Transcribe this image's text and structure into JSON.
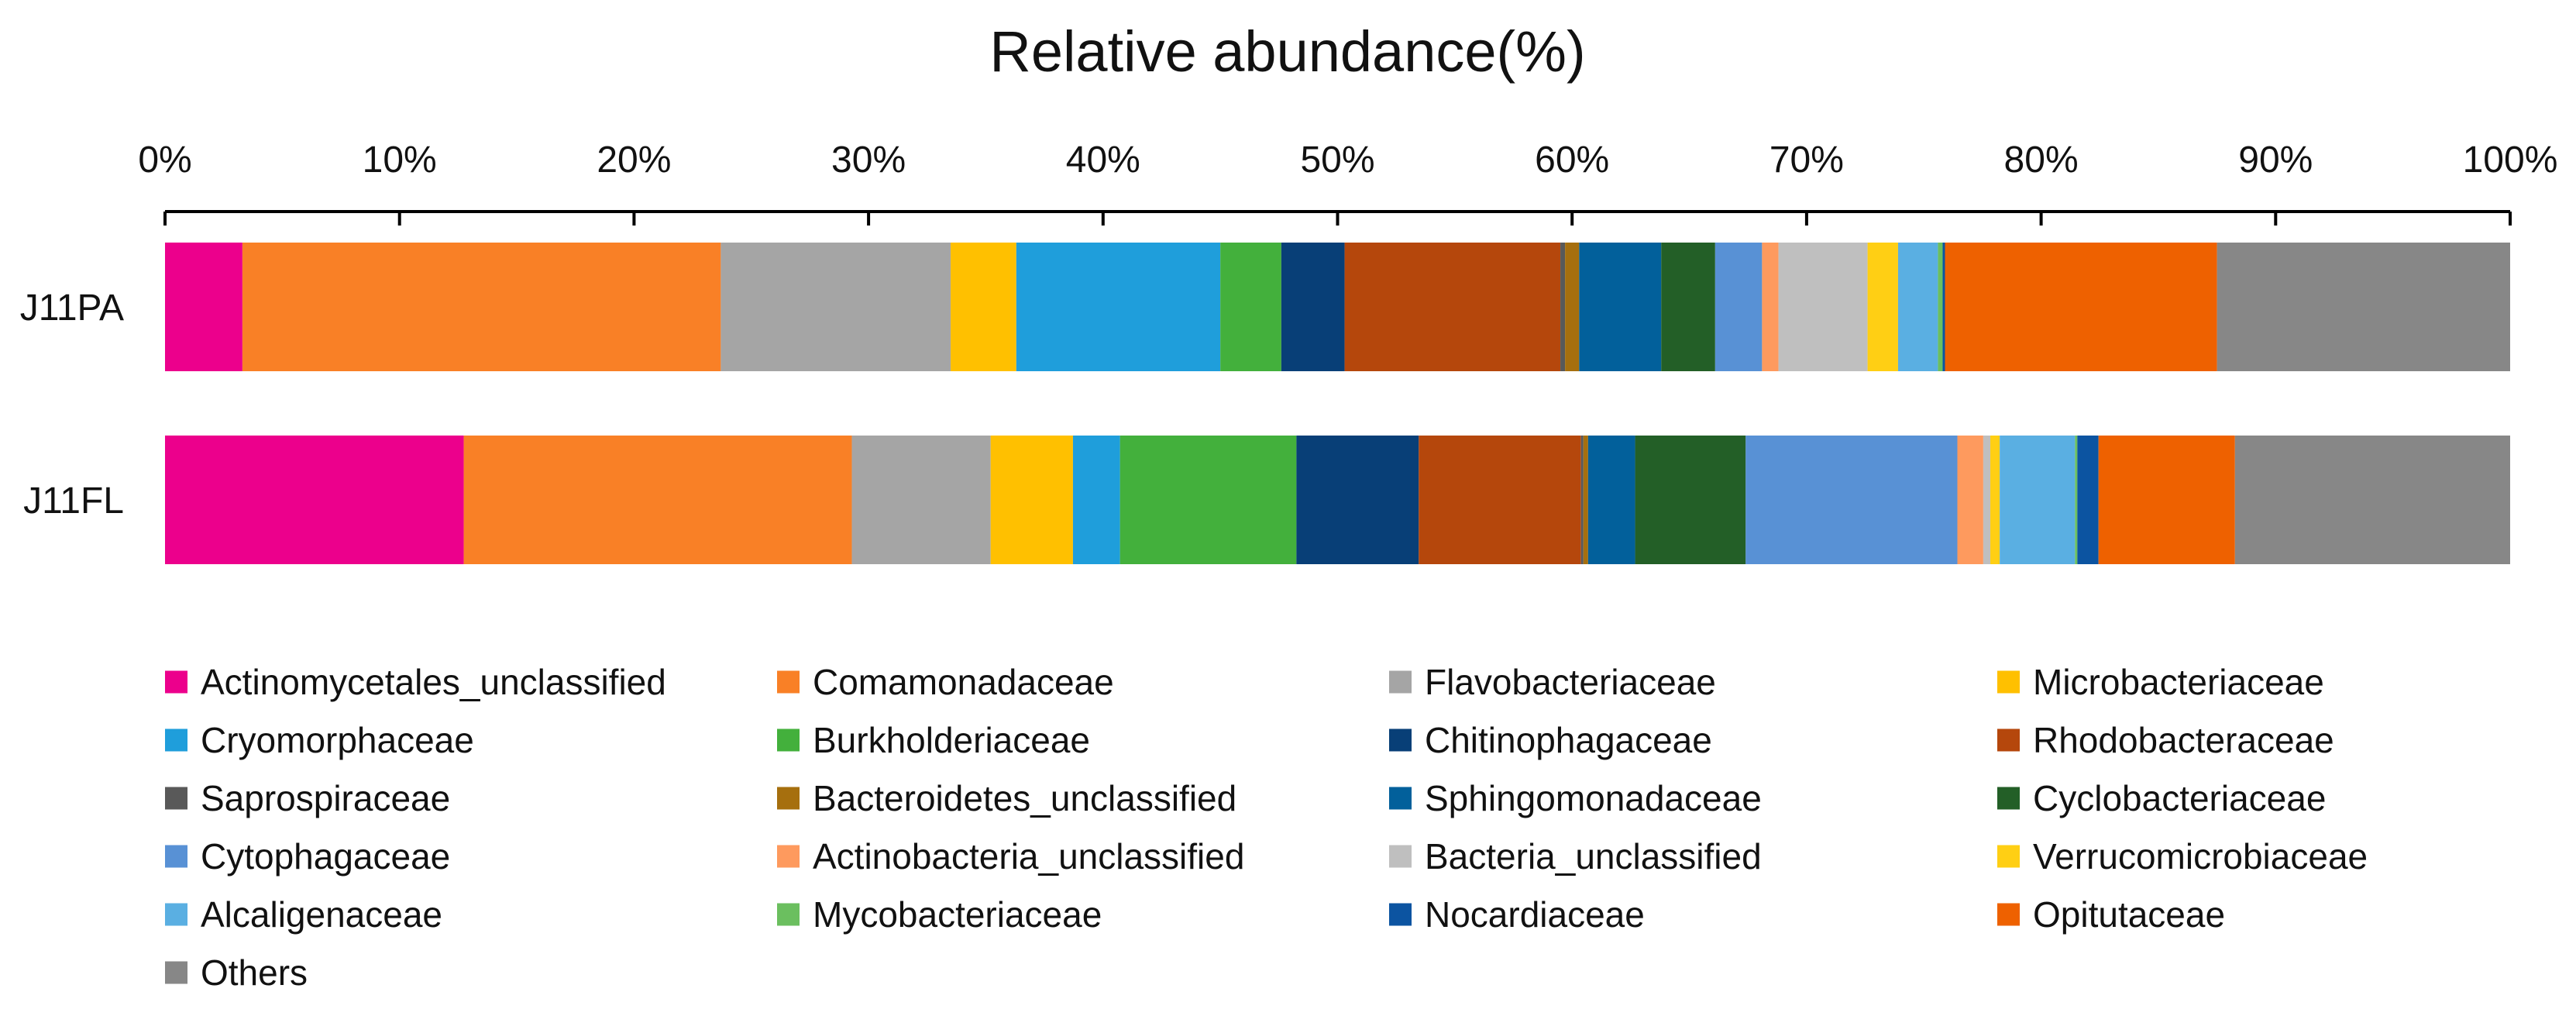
{
  "chart_data": {
    "type": "bar",
    "orientation": "horizontal",
    "stacked": true,
    "normalized": true,
    "title": "Relative abundance(%)",
    "xlabel": "",
    "ylabel": "",
    "xlim": [
      0,
      100
    ],
    "x_ticks": [
      "0%",
      "10%",
      "20%",
      "30%",
      "40%",
      "50%",
      "60%",
      "70%",
      "80%",
      "90%",
      "100%"
    ],
    "x_axis_position": "top",
    "grid": false,
    "legend_position": "bottom",
    "categories": [
      "J11PA",
      "J11FL"
    ],
    "series": [
      {
        "name": "Actinomycetales_unclassified",
        "color": "#EC008C",
        "values": [
          3.3,
          12.7
        ]
      },
      {
        "name": "Comamonadaceae",
        "color": "#F98026",
        "values": [
          20.4,
          16.5
        ]
      },
      {
        "name": "Flavobacteriaceae",
        "color": "#A5A5A5",
        "values": [
          9.8,
          5.9
        ]
      },
      {
        "name": "Microbacteriaceae",
        "color": "#FFC000",
        "values": [
          2.8,
          3.5
        ]
      },
      {
        "name": "Cryomorphaceae",
        "color": "#1F9EDB",
        "values": [
          8.7,
          2.0
        ]
      },
      {
        "name": "Burkholderiaceae",
        "color": "#43B03C",
        "values": [
          2.6,
          7.5
        ]
      },
      {
        "name": "Chitinophagaceae",
        "color": "#083F77",
        "values": [
          2.7,
          5.2
        ]
      },
      {
        "name": "Rhodobacteraceae",
        "color": "#B5470C",
        "values": [
          9.2,
          6.9
        ]
      },
      {
        "name": "Saprospiraceae",
        "color": "#595959",
        "values": [
          0.2,
          0.1
        ]
      },
      {
        "name": "Bacteroidetes_unclassified",
        "color": "#A66F0E",
        "values": [
          0.6,
          0.2
        ]
      },
      {
        "name": "Sphingomonadaceae",
        "color": "#02609B",
        "values": [
          3.5,
          2.0
        ]
      },
      {
        "name": "Cyclobacteriaceae",
        "color": "#235F27",
        "values": [
          2.3,
          4.7
        ]
      },
      {
        "name": "Cytophagaceae",
        "color": "#5891D5",
        "values": [
          2.0,
          9.0
        ]
      },
      {
        "name": "Actinobacteria_unclassified",
        "color": "#FE9A5E",
        "values": [
          0.7,
          1.1
        ]
      },
      {
        "name": "Bacteria_unclassified",
        "color": "#BFBFBF",
        "values": [
          3.8,
          0.3
        ]
      },
      {
        "name": "Verrucomicrobiaceae",
        "color": "#FFCF14",
        "values": [
          1.3,
          0.4
        ]
      },
      {
        "name": "Alcaligenaceae",
        "color": "#5AAFE2",
        "values": [
          1.7,
          3.2
        ]
      },
      {
        "name": "Mycobacteriaceae",
        "color": "#6BBF5F",
        "values": [
          0.2,
          0.1
        ]
      },
      {
        "name": "Nocardiaceae",
        "color": "#0C54A1",
        "values": [
          0.1,
          0.9
        ]
      },
      {
        "name": "Opitutaceae",
        "color": "#EE6100",
        "values": [
          11.6,
          5.8
        ]
      },
      {
        "name": "Others",
        "color": "#878787",
        "values": [
          12.5,
          11.7
        ]
      }
    ]
  }
}
